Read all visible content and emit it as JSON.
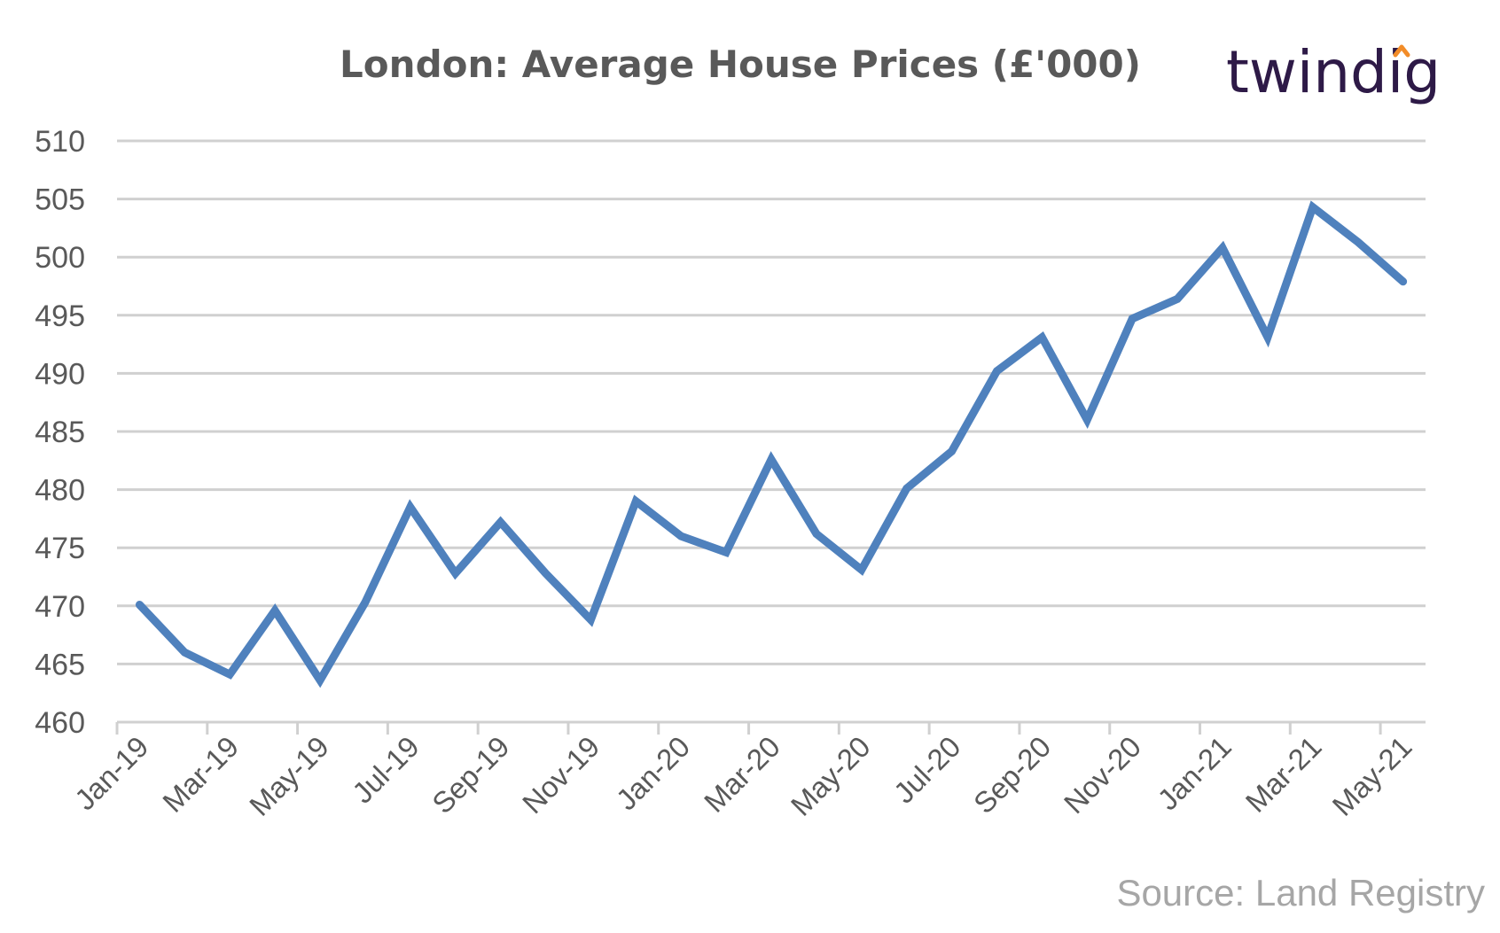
{
  "chart_data": {
    "type": "line",
    "title": "London: Average House Prices (£'000)",
    "xlabel": "",
    "ylabel": "",
    "ylim": [
      460,
      510
    ],
    "yticks": [
      "460",
      "465",
      "470",
      "475",
      "480",
      "485",
      "490",
      "495",
      "500",
      "505",
      "510"
    ],
    "grid": true,
    "legend": "none",
    "x": [
      "Jan-19",
      "Feb-19",
      "Mar-19",
      "Apr-19",
      "May-19",
      "Jun-19",
      "Jul-19",
      "Aug-19",
      "Sep-19",
      "Oct-19",
      "Nov-19",
      "Dec-19",
      "Jan-20",
      "Feb-20",
      "Mar-20",
      "Apr-20",
      "May-20",
      "Jun-20",
      "Jul-20",
      "Aug-20",
      "Sep-20",
      "Oct-20",
      "Nov-20",
      "Dec-20",
      "Jan-21",
      "Feb-21",
      "Mar-21",
      "Apr-21",
      "May-21"
    ],
    "xtick_labels": [
      "Jan-19",
      "Mar-19",
      "May-19",
      "Jul-19",
      "Sep-19",
      "Nov-19",
      "Jan-20",
      "Mar-20",
      "May-20",
      "Jul-20",
      "Sep-20",
      "Nov-20",
      "Jan-21",
      "Mar-21",
      "May-21"
    ],
    "series": [
      {
        "values": [
          470.1,
          466.0,
          464.1,
          469.6,
          463.6,
          470.3,
          478.5,
          472.8,
          477.2,
          472.8,
          468.8,
          479.0,
          476.0,
          474.6,
          482.6,
          476.2,
          473.1,
          480.1,
          483.3,
          490.2,
          493.1,
          486.0,
          494.7,
          496.4,
          500.8,
          493.1,
          504.3,
          501.3,
          497.9
        ],
        "color": "#4f81bd"
      }
    ]
  },
  "logo": {
    "text": "twindig",
    "color": "#2e1a47",
    "accent_color": "#f28c28"
  },
  "source": "Source: Land Registry"
}
